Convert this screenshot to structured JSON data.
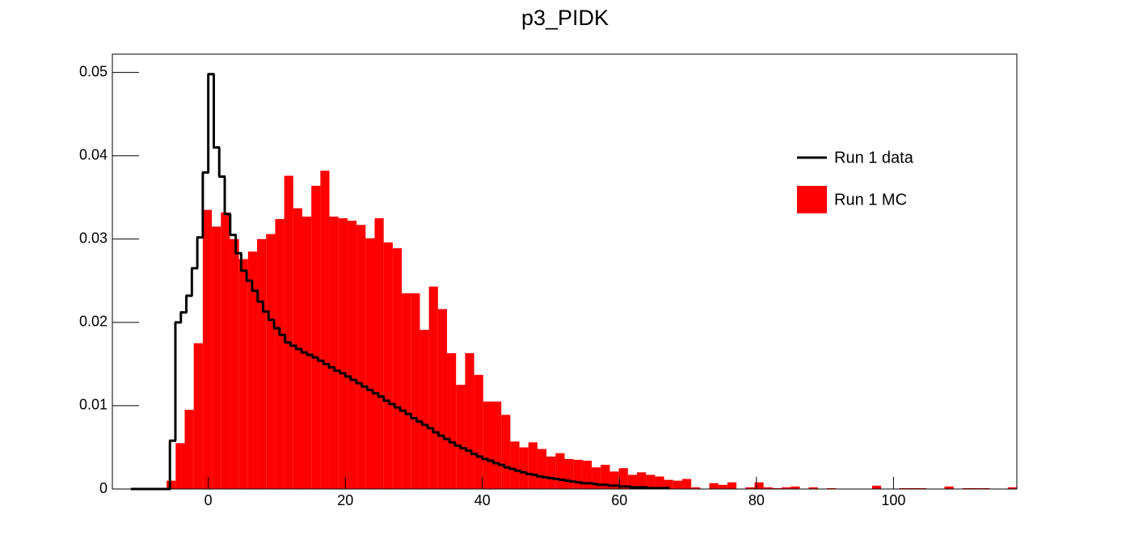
{
  "chart_data": {
    "type": "histogram",
    "title": "p3_PIDK",
    "xlim": [
      -14,
      118
    ],
    "ylim": [
      0,
      0.0522
    ],
    "xticks": [
      0,
      20,
      40,
      60,
      80,
      100
    ],
    "yticks": [
      0,
      0.01,
      0.02,
      0.03,
      0.04,
      0.05
    ],
    "legend": "upper right",
    "series": [
      {
        "name": "Run 1 data",
        "color": "#000000",
        "style": "step",
        "bins": [
          -11.2,
          -10.4,
          -9.6,
          -8.8,
          -8,
          -7.2,
          -6.4,
          -5.6,
          -4.8,
          -4,
          -3.2,
          -2.4,
          -1.6,
          -0.8,
          0,
          0.8,
          1.6,
          2.4,
          3.2,
          4,
          4.8,
          5.6,
          6.4,
          7.2,
          8,
          8.8,
          9.6,
          10.4,
          11.2,
          12,
          12.8,
          13.6,
          14.4,
          15.2,
          16,
          16.8,
          17.6,
          18.4,
          19.2,
          20,
          20.8,
          21.6,
          22.4,
          23.2,
          24,
          24.8,
          25.6,
          26.4,
          27.2,
          28,
          28.8,
          29.6,
          30.4,
          31.2,
          32,
          32.8,
          33.6,
          34.4,
          35.2,
          36,
          36.8,
          37.6,
          38.4,
          39.2,
          40,
          40.8,
          41.6,
          42.4,
          43.2,
          44,
          44.8,
          45.6,
          46.4,
          47.2,
          48,
          48.8,
          49.6,
          50.4,
          51.2,
          52,
          52.8,
          53.6,
          54.4,
          55.2,
          56,
          56.8,
          57.6,
          58.4,
          59.2,
          60,
          60.8,
          61.6,
          62.4,
          63.2,
          64,
          64.8,
          65.6,
          66.4,
          67.2
        ],
        "values": [
          0,
          0,
          0,
          0,
          0,
          0,
          0,
          0.0058,
          0.02,
          0.0212,
          0.0232,
          0.0265,
          0.0302,
          0.038,
          0.0498,
          0.041,
          0.0375,
          0.033,
          0.0305,
          0.0283,
          0.0262,
          0.025,
          0.0238,
          0.0225,
          0.0213,
          0.0203,
          0.0193,
          0.0185,
          0.0176,
          0.0172,
          0.0168,
          0.0164,
          0.0161,
          0.0158,
          0.0154,
          0.015,
          0.0146,
          0.0142,
          0.0139,
          0.0135,
          0.0131,
          0.0127,
          0.0123,
          0.0119,
          0.0115,
          0.0111,
          0.0106,
          0.0102,
          0.0098,
          0.0094,
          0.009,
          0.0085,
          0.0081,
          0.0077,
          0.0073,
          0.0068,
          0.0064,
          0.006,
          0.0056,
          0.0052,
          0.0049,
          0.0046,
          0.0042,
          0.0039,
          0.0036,
          0.0034,
          0.0031,
          0.0029,
          0.0026,
          0.0024,
          0.0022,
          0.002,
          0.0018,
          0.0017,
          0.0015,
          0.0014,
          0.0013,
          0.0012,
          0.0011,
          0.001,
          0.0009,
          0.0008,
          0.0007,
          0.0007,
          0.0006,
          0.0005,
          0.0005,
          0.0004,
          0.0004,
          0.0003,
          0.0003,
          0.0002,
          0.0002,
          0.0002,
          0.0001,
          0.0001,
          0.0001,
          0.0001
        ]
      },
      {
        "name": "Run 1 MC",
        "color": "#ff0000",
        "style": "filled",
        "bins": [
          -14,
          -12.68,
          -11.36,
          -10.04,
          -8.72,
          -7.4,
          -6.08,
          -4.76,
          -3.44,
          -2.12,
          -0.8,
          0.52,
          1.84,
          3.16,
          4.48,
          5.8,
          7.12,
          8.44,
          9.76,
          11.08,
          12.4,
          13.72,
          15.04,
          16.36,
          17.68,
          19,
          20.32,
          21.64,
          22.96,
          24.28,
          25.6,
          26.92,
          28.24,
          29.56,
          30.88,
          32.2,
          33.52,
          34.84,
          36.16,
          37.48,
          38.8,
          40.12,
          41.44,
          42.76,
          44.08,
          45.4,
          46.72,
          48.04,
          49.36,
          50.68,
          52,
          53.32,
          54.64,
          55.96,
          57.28,
          58.6,
          59.92,
          61.24,
          62.56,
          63.88,
          65.2,
          66.52,
          67.84,
          69.16,
          70.48,
          71.8,
          73.12,
          74.44,
          75.76,
          77.08,
          78.4,
          79.72,
          81.04,
          82.36,
          83.68,
          85,
          86.32,
          87.64,
          88.96,
          90.28,
          91.6,
          92.92,
          94.24,
          95.56,
          96.88,
          98.2,
          99.52,
          100.84,
          102.16,
          103.48,
          104.8,
          106.12,
          107.44,
          108.76,
          110.08,
          111.4,
          112.72,
          114.04,
          115.36,
          116.68,
          118
        ],
        "values": [
          0,
          0,
          0,
          0,
          0,
          0,
          0.001,
          0.0055,
          0.0095,
          0.0175,
          0.0335,
          0.0315,
          0.0332,
          0.03,
          0.0276,
          0.0285,
          0.03,
          0.0306,
          0.0324,
          0.0376,
          0.0337,
          0.0327,
          0.0364,
          0.0382,
          0.0327,
          0.0325,
          0.0322,
          0.0317,
          0.0301,
          0.0325,
          0.0296,
          0.0289,
          0.0235,
          0.0235,
          0.0191,
          0.0243,
          0.0216,
          0.0163,
          0.0125,
          0.0163,
          0.0137,
          0.0105,
          0.0105,
          0.0089,
          0.0057,
          0.005,
          0.0056,
          0.0048,
          0.0039,
          0.0043,
          0.0036,
          0.0035,
          0.0034,
          0.0026,
          0.0029,
          0.0021,
          0.0025,
          0.0017,
          0.002,
          0.0017,
          0.0015,
          0.0011,
          0.001,
          0.0012,
          0.0002,
          0,
          0.0007,
          0.0005,
          0.0008,
          0,
          0.0002,
          0.0008,
          0.0002,
          0.0001,
          0.0002,
          0.0003,
          0,
          0.0002,
          0,
          0.0001,
          0,
          0,
          0,
          0,
          0.0004,
          0,
          0,
          0.0001,
          0.0001,
          0.0001,
          0,
          0,
          0.0003,
          0,
          0.0001,
          0.0001,
          0.0001,
          0,
          0,
          0.0002
        ]
      }
    ]
  }
}
